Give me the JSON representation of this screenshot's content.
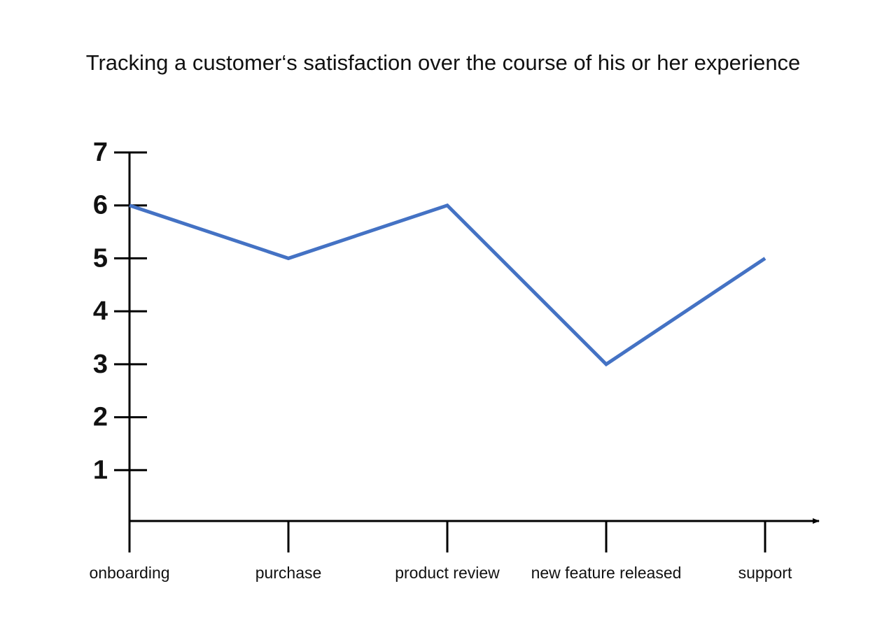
{
  "chart_data": {
    "type": "line",
    "title": "Tracking a customer‘s satisfaction over the course of his or her experience",
    "categories": [
      "onboarding",
      "purchase",
      "product review",
      "new feature released",
      "support"
    ],
    "values": [
      6,
      5,
      6,
      3,
      5
    ],
    "color": "#4472c4",
    "ylim": [
      0,
      7
    ],
    "yticks": [
      1,
      2,
      3,
      4,
      5,
      6,
      7
    ],
    "grid": false
  }
}
